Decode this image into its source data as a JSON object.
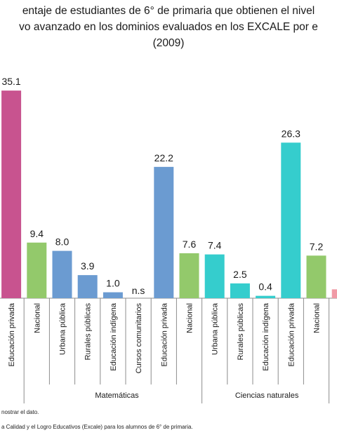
{
  "chart_data": {
    "type": "bar",
    "title_lines": [
      "entaje de estudiantes de 6° de primaria que obtienen el nivel",
      "vo avanzado en los dominios evaluados en los EXCALE por e",
      "(2009)"
    ],
    "colors": {
      "rose": "#c8538f",
      "green": "#93c96b",
      "blue": "#6b9bd1",
      "teal": "#35cdcd",
      "pink": "#f09aa6"
    },
    "bars": [
      {
        "category": "Educación privada",
        "value": 35.1,
        "label": "35.1",
        "color": "rose"
      },
      {
        "category": "Nacional",
        "value": 9.4,
        "label": "9.4",
        "color": "green"
      },
      {
        "category": "Urbana pública",
        "value": 8.0,
        "label": "8.0",
        "color": "blue"
      },
      {
        "category": "Rurales públicas",
        "value": 3.9,
        "label": "3.9",
        "color": "blue"
      },
      {
        "category": "Educación indígena",
        "value": 1.0,
        "label": "1.0",
        "color": "blue"
      },
      {
        "category": "Cursos comunitarios",
        "value": null,
        "label": "n.s",
        "color": "blue"
      },
      {
        "category": "Educación privada",
        "value": 22.2,
        "label": "22.2",
        "color": "blue"
      },
      {
        "category": "Nacional",
        "value": 7.6,
        "label": "7.6",
        "color": "green"
      },
      {
        "category": "Urbana pública",
        "value": 7.4,
        "label": "7.4",
        "color": "teal"
      },
      {
        "category": "Rurales públicas",
        "value": 2.5,
        "label": "2.5",
        "color": "teal"
      },
      {
        "category": "Educación indígena",
        "value": 0.4,
        "label": "0.4",
        "color": "teal"
      },
      {
        "category": "Educación privada",
        "value": 26.3,
        "label": "26.3",
        "color": "teal"
      },
      {
        "category": "Nacional",
        "value": 7.2,
        "label": "7.2",
        "color": "green"
      },
      {
        "category": "",
        "value": 1.5,
        "label": "",
        "color": "pink"
      }
    ],
    "groups": [
      {
        "name": "Matemáticas"
      },
      {
        "name": "Ciencias naturales"
      }
    ]
  },
  "notes": [
    "nostrar el dato.",
    "a Calidad y el Logro Educativos (Excale) para los alumnos de 6° de primaria."
  ]
}
